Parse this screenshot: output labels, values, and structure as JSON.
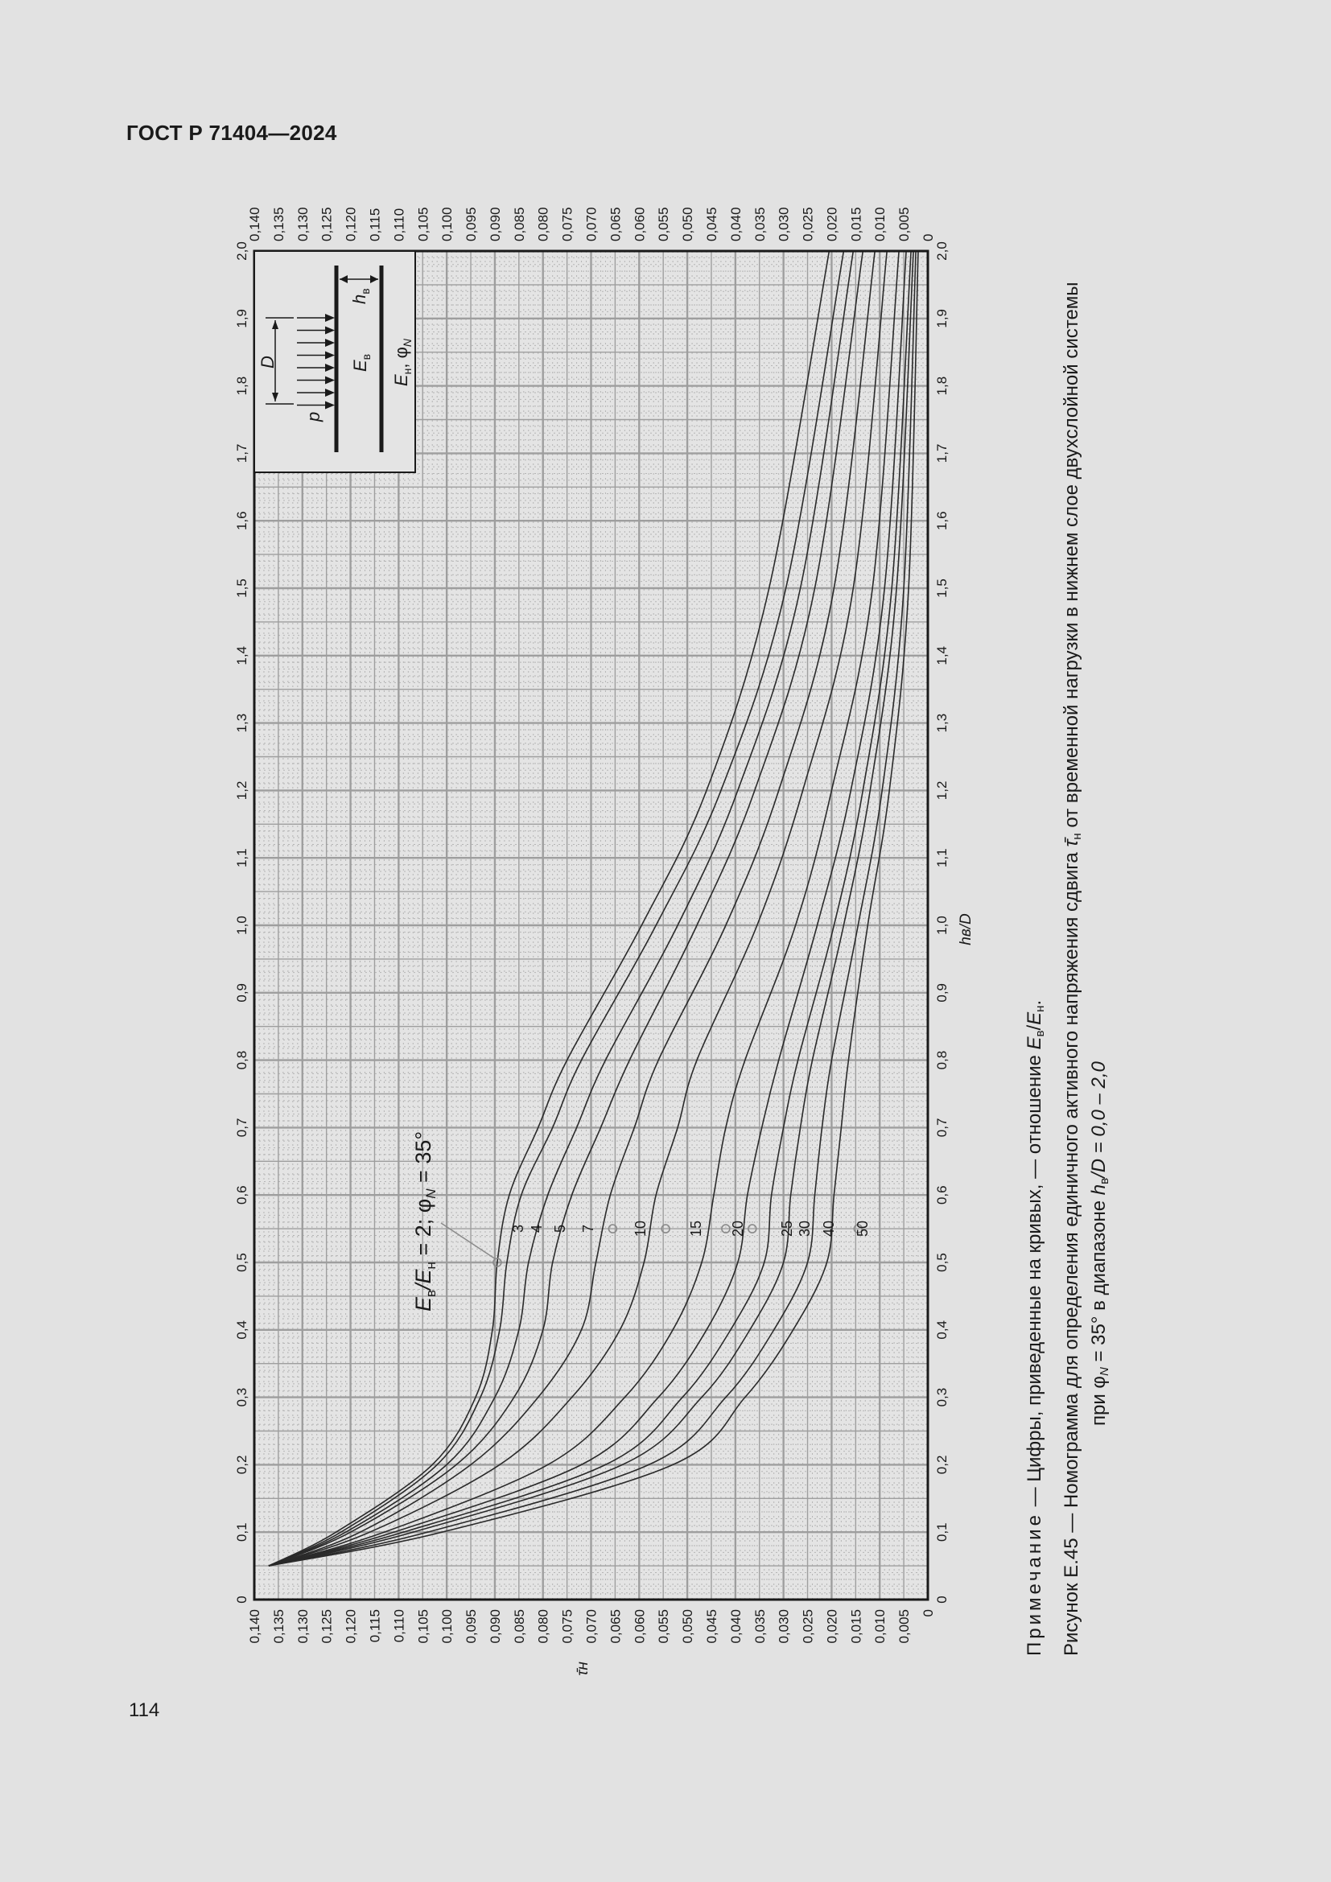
{
  "header": {
    "document_code": "ГОСТ Р 71404—2024"
  },
  "page": {
    "number": "114"
  },
  "chart_data": {
    "type": "line",
    "orientation": "rotated-90-ccw",
    "title": "Номограмма для определения единичного активного напряжения сдвига τ̄н от временной нагрузки в нижнем слое двухслойной системы при φN = 35° в диапазоне hв/D = 0,0 – 2,0",
    "xlabel": "hв/D",
    "ylabel": "τ̄н",
    "xlim": [
      0,
      2.0
    ],
    "ylim": [
      0,
      0.14
    ],
    "x_ticks": [
      "0",
      "0,1",
      "0,2",
      "0,3",
      "0,4",
      "0,5",
      "0,6",
      "0,7",
      "0,8",
      "0,9",
      "1,0",
      "1,1",
      "1,2",
      "1,3",
      "1,4",
      "1,5",
      "1,6",
      "1,7",
      "1,8",
      "1,9",
      "2,0"
    ],
    "y_ticks": [
      "0",
      "0,005",
      "0,010",
      "0,015",
      "0,020",
      "0,025",
      "0,030",
      "0,035",
      "0,040",
      "0,045",
      "0,050",
      "0,055",
      "0,060",
      "0,065",
      "0,070",
      "0,075",
      "0,080",
      "0,085",
      "0,090",
      "0,095",
      "0,100",
      "0,105",
      "0,110",
      "0,115",
      "0,120",
      "0,125",
      "0,130",
      "0,135",
      "0,140"
    ],
    "grid": true,
    "x": [
      0.05,
      0.1,
      0.2,
      0.3,
      0.4,
      0.5,
      0.6,
      0.7,
      0.8,
      1.0,
      1.2,
      1.5,
      2.0
    ],
    "series": [
      {
        "name": "2",
        "values": [
          0.137,
          0.123,
          0.103,
          0.094,
          0.0905,
          0.0895,
          0.087,
          0.081,
          0.075,
          0.0595,
          0.046,
          0.033,
          0.0205
        ]
      },
      {
        "name": "3",
        "values": [
          0.137,
          0.122,
          0.102,
          0.093,
          0.089,
          0.0875,
          0.0845,
          0.078,
          0.072,
          0.0565,
          0.043,
          0.0295,
          0.0175
        ]
      },
      {
        "name": "4",
        "values": [
          0.137,
          0.121,
          0.1,
          0.09,
          0.085,
          0.083,
          0.079,
          0.073,
          0.067,
          0.052,
          0.0395,
          0.0265,
          0.0155
        ]
      },
      {
        "name": "5",
        "values": [
          0.137,
          0.12,
          0.098,
          0.086,
          0.08,
          0.078,
          0.074,
          0.068,
          0.062,
          0.048,
          0.036,
          0.0235,
          0.0135
        ]
      },
      {
        "name": "7",
        "values": [
          0.137,
          0.118,
          0.095,
          0.081,
          0.072,
          0.069,
          0.066,
          0.061,
          0.056,
          0.042,
          0.031,
          0.0195,
          0.011
        ]
      },
      {
        "name": "10",
        "values": [
          0.137,
          0.116,
          0.089,
          0.074,
          0.064,
          0.059,
          0.0565,
          0.052,
          0.048,
          0.0355,
          0.026,
          0.0155,
          0.0085
        ]
      },
      {
        "name": "15",
        "values": [
          0.137,
          0.113,
          0.079,
          0.063,
          0.053,
          0.047,
          0.0445,
          0.042,
          0.038,
          0.0275,
          0.02,
          0.0115,
          0.006
        ]
      },
      {
        "name": "20",
        "values": [
          0.137,
          0.111,
          0.072,
          0.056,
          0.046,
          0.0395,
          0.0375,
          0.0345,
          0.031,
          0.023,
          0.016,
          0.009,
          0.0045
        ]
      },
      {
        "name": "25",
        "values": [
          0.137,
          0.109,
          0.067,
          0.051,
          0.041,
          0.034,
          0.0325,
          0.03,
          0.027,
          0.0195,
          0.0135,
          0.0075,
          0.0035
        ]
      },
      {
        "name": "30",
        "values": [
          0.137,
          0.107,
          0.0635,
          0.047,
          0.037,
          0.03,
          0.0285,
          0.0265,
          0.024,
          0.0175,
          0.012,
          0.0065,
          0.003
        ]
      },
      {
        "name": "40",
        "values": [
          0.137,
          0.104,
          0.058,
          0.042,
          0.032,
          0.025,
          0.0235,
          0.022,
          0.02,
          0.0145,
          0.0095,
          0.005,
          0.0025
        ]
      },
      {
        "name": "50",
        "values": [
          0.137,
          0.101,
          0.053,
          0.038,
          0.028,
          0.021,
          0.0195,
          0.018,
          0.0165,
          0.0125,
          0.008,
          0.004,
          0.002
        ]
      }
    ],
    "markers": [
      {
        "series": "2",
        "x": 0.5,
        "y": 0.0895
      },
      {
        "series": "7",
        "x": 0.55,
        "y": 0.0655
      },
      {
        "series": "10",
        "x": 0.55,
        "y": 0.0545
      },
      {
        "series": "20",
        "x": 0.55,
        "y": 0.042
      },
      {
        "series": "25",
        "x": 0.55,
        "y": 0.0365
      },
      {
        "series": "50",
        "x": 0.55,
        "y": 0.0145
      }
    ],
    "annotation": {
      "text_main": "E",
      "sub1": "в",
      "slash": "/E",
      "sub2": "н",
      "rest": " = 2; φ",
      "sub3": "N",
      "end": " = 35°",
      "points_to": {
        "series": "2",
        "x": 0.5
      }
    },
    "curve_labels_at_x": 0.55,
    "legend": "Цифры на кривых — отношение Eв/Eн",
    "inset": {
      "labels": {
        "load": "p",
        "diameter": "D",
        "thickness": "h",
        "thickness_sub": "в",
        "upper_layer": "E",
        "upper_sub": "в",
        "lower_layer": "E",
        "lower_sub": "н",
        "lower_rest": ", φ",
        "lower_sub2": "N"
      }
    }
  },
  "captions": {
    "note_prefix": "Примечание",
    "note_text": " — Цифры, приведенные на кривых, — отношение ",
    "note_e1": "E",
    "note_sub1": "в",
    "note_slash": "/",
    "note_e2": "E",
    "note_sub2": "н",
    "note_end": ".",
    "figure_line1_a": "Рисунок Е.45 — Номограмма для определения единичного активного напряжения сдвига ",
    "figure_tau": "τ̄",
    "figure_tau_sub": "н",
    "figure_line1_b": " от временной нагрузки в нижнем слое двухслойной системы",
    "figure_line2_a": "при φ",
    "figure_line2_sub1": "N",
    "figure_line2_b": " = 35° в диапазоне ",
    "figure_line2_h": "h",
    "figure_line2_sub2": "в",
    "figure_line2_c": "/D = 0,0 – 2,0"
  }
}
